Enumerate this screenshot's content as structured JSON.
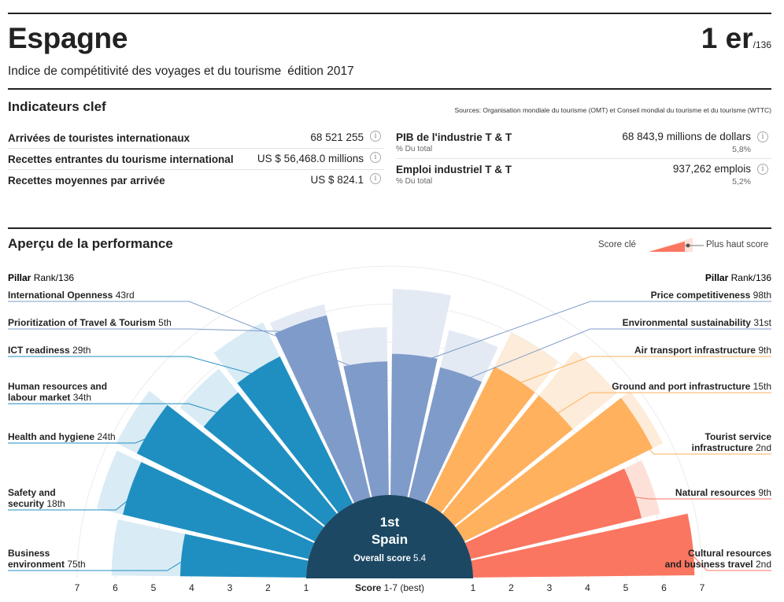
{
  "header": {
    "country": "Espagne",
    "rank": "1 er",
    "rank_of": "/136",
    "subtitle": "Indice de compétitivité des voyages et du tourisme",
    "edition": "édition 2017"
  },
  "indicators": {
    "title": "Indicateurs clef",
    "sources": "Sources: Organisation mondiale du tourisme (OMT) et Conseil mondial du tourisme et du tourisme (WTTC)",
    "left": [
      {
        "label": "Arrivées de touristes internationaux",
        "value": "68 521 255"
      },
      {
        "label": "Recettes entrantes du tourisme international",
        "value": "US $ 56,468.0 millions"
      },
      {
        "label": "Recettes moyennes par arrivée",
        "value": "US $ 824.1"
      }
    ],
    "right": [
      {
        "label": "PIB de l'industrie T & T",
        "sub": "% Du total",
        "value": "68 843,9 millions de dollars",
        "pct": "5,8%"
      },
      {
        "label": "Emploi industriel T & T",
        "sub": "% Du total",
        "value": "937,262 emplois",
        "pct": "5,2%"
      }
    ],
    "info_glyph": "i"
  },
  "performance": {
    "title": "Aperçu de la performance",
    "legend_key": "Score clé",
    "legend_best": "Plus haut score",
    "pillar_head": "Pillar",
    "pillar_head_sub": "Rank/136",
    "center_rank": "1st",
    "center_country": "Spain",
    "center_score_label": "Overall score",
    "center_score": "5.4",
    "axis_title": "Score",
    "axis_title_sub": "1-7 (best)"
  },
  "chart_data": {
    "type": "radial-bar",
    "axis_range": [
      1,
      7
    ],
    "axis_ticks": [
      "1",
      "2",
      "3",
      "4",
      "5",
      "6",
      "7"
    ],
    "colors": {
      "environment": "#1f8fc1",
      "policy": "#7f9bc9",
      "infrastructure": "#ffb15e",
      "resources": "#fa7660"
    },
    "pillars": [
      {
        "name": "Business environment",
        "rank": "75th",
        "score": 4.3,
        "best": 6.1,
        "group": "environment"
      },
      {
        "name": "Safety and security",
        "rank": "18th",
        "score": 6.0,
        "best": 6.7,
        "group": "environment"
      },
      {
        "name": "Health and hygiene",
        "rank": "24th",
        "score": 6.2,
        "best": 6.8,
        "group": "environment"
      },
      {
        "name": "Human resources and labour market",
        "rank": "34th",
        "score": 5.1,
        "best": 5.9,
        "group": "environment"
      },
      {
        "name": "ICT readiness",
        "rank": "29th",
        "score": 5.3,
        "best": 6.3,
        "group": "environment"
      },
      {
        "name": "Prioritization of Travel & Tourism",
        "rank": "5th",
        "score": 5.9,
        "best": 6.2,
        "group": "policy"
      },
      {
        "name": "International Openness",
        "rank": "43rd",
        "score": 4.5,
        "best": 5.4,
        "group": "policy"
      },
      {
        "name": "Price competitiveness",
        "rank": "98th",
        "score": 4.7,
        "best": 6.4,
        "group": "policy"
      },
      {
        "name": "Environmental sustainability",
        "rank": "31st",
        "score": 4.5,
        "best": 5.5,
        "group": "policy"
      },
      {
        "name": "Air transport infrastructure",
        "rank": "9th",
        "score": 5.0,
        "best": 6.0,
        "group": "infrastructure"
      },
      {
        "name": "Ground and port infrastructure",
        "rank": "15th",
        "score": 5.0,
        "best": 6.5,
        "group": "infrastructure"
      },
      {
        "name": "Tourist service infrastructure",
        "rank": "2nd",
        "score": 6.5,
        "best": 6.8,
        "group": "infrastructure"
      },
      {
        "name": "Natural resources",
        "rank": "9th",
        "score": 5.6,
        "best": 6.1,
        "group": "resources"
      },
      {
        "name": "Cultural resources and business travel",
        "rank": "2nd",
        "score": 6.8,
        "best": 6.8,
        "group": "resources"
      }
    ]
  }
}
